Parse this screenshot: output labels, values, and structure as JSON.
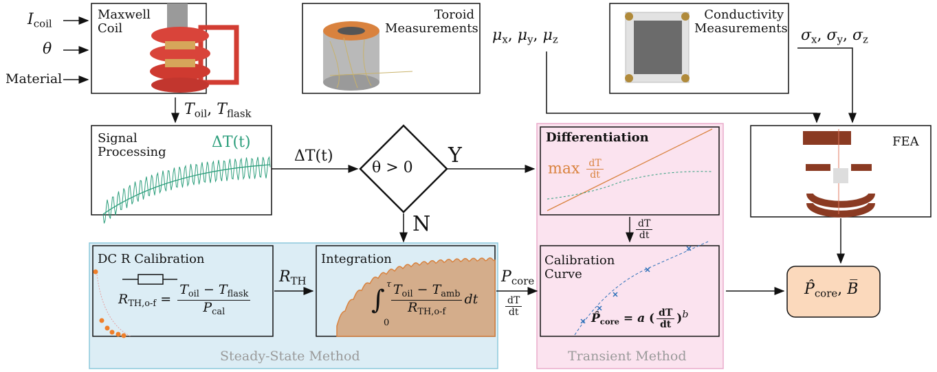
{
  "inputs": {
    "current": {
      "symbol": "I",
      "sub": "coil"
    },
    "angle": "θ",
    "material": "Material"
  },
  "nodes": {
    "maxwell_coil": [
      "Maxwell",
      "Coil"
    ],
    "toroid": [
      "Toroid",
      "Measurements"
    ],
    "conductivity": [
      "Conductivity",
      "Measurements"
    ],
    "signal_processing": {
      "title": [
        "Signal",
        "Processing"
      ],
      "curve": "ΔT(t)"
    },
    "decision": {
      "condition": "θ > 0",
      "yes": "Y",
      "no": "N"
    },
    "differentiation": {
      "title": "Differentiation",
      "annotation": "max",
      "slope": {
        "num": "dT",
        "den": "dt"
      }
    },
    "fea": "FEA",
    "dc_calibration": {
      "title": "DC R Calibration",
      "equation": {
        "lhs": {
          "symbol": "R",
          "sub": "TH,o-f"
        },
        "op": "=",
        "numerator": [
          {
            "symbol": "T",
            "sub": "oil"
          },
          " − ",
          {
            "symbol": "T",
            "sub": "flask"
          }
        ],
        "denominator": {
          "symbol": "P",
          "sub": "cal"
        }
      }
    },
    "integration": {
      "title": "Integration",
      "equation": {
        "integral": "∫",
        "lower": "0",
        "upper": "τ",
        "numerator": [
          {
            "symbol": "T",
            "sub": "oil"
          },
          " − ",
          {
            "symbol": "T",
            "sub": "amb"
          }
        ],
        "denominator": {
          "symbol": "R",
          "sub": "TH,o-f"
        },
        "differential": "dt"
      }
    },
    "calibration_curve": {
      "title": [
        "Calibration",
        "Curve"
      ],
      "equation": {
        "lhs": {
          "symbol": "P̂",
          "sub": "core"
        },
        "op": " = ",
        "coefficient": "a",
        "open": "(",
        "slope": {
          "num": "dT",
          "den": "dt"
        },
        "close": ")",
        "exponent": "b"
      }
    },
    "output": {
      "power": {
        "symbol": "P̂",
        "sub": "core"
      },
      "separator": ", ",
      "flux": "B̅"
    }
  },
  "edges": {
    "coil_temperatures": [
      {
        "symbol": "T",
        "sub": "oil"
      },
      ", ",
      {
        "symbol": "T",
        "sub": "flask"
      }
    ],
    "permeability": [
      {
        "symbol": "μ",
        "sub": "x"
      },
      ", ",
      {
        "symbol": "μ",
        "sub": "y"
      },
      ", ",
      {
        "symbol": "μ",
        "sub": "z"
      }
    ],
    "conductivity": [
      {
        "symbol": "σ",
        "sub": "x"
      },
      ", ",
      {
        "symbol": "σ",
        "sub": "y"
      },
      ", ",
      {
        "symbol": "σ",
        "sub": "z"
      }
    ],
    "signal": "ΔT(t)",
    "derivative": {
      "num": "dT",
      "den": "dt"
    },
    "resistance": {
      "symbol": "R",
      "sub": "TH"
    },
    "power": {
      "symbol": "P",
      "sub": "core"
    },
    "power_derivative": {
      "num": "dT",
      "den": "dt"
    }
  },
  "groups": {
    "steady_state": "Steady-State Method",
    "transient": "Transient Method"
  }
}
